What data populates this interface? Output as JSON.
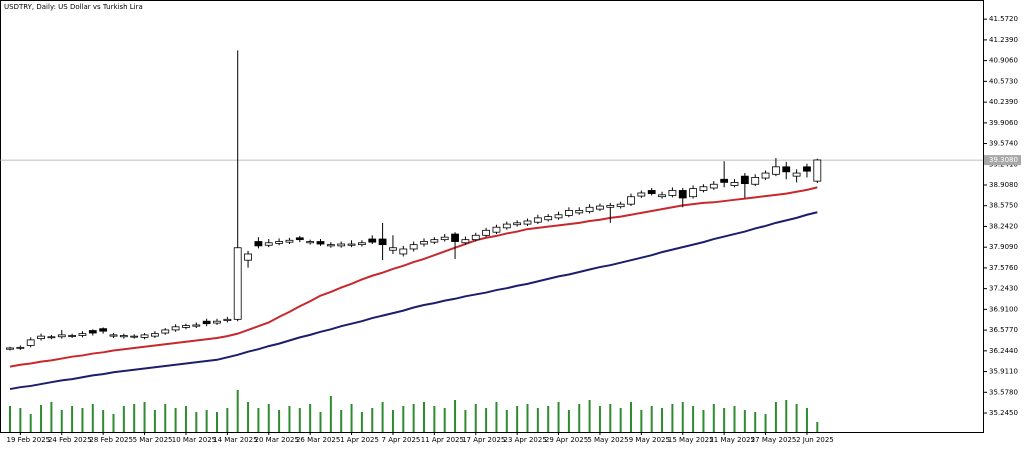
{
  "chart_data": {
    "type": "candlestick",
    "title": "USDTRY, Daily:  US Dollar vs Turkish Lira",
    "categories": [
      null,
      "19 Feb 2025",
      null,
      null,
      null,
      "24 Feb 2025",
      null,
      null,
      null,
      "28 Feb 2025",
      null,
      null,
      null,
      "5 Mar 2025",
      null,
      null,
      null,
      "10 Mar 2025",
      null,
      null,
      null,
      "14 Mar 2025",
      null,
      null,
      null,
      "20 Mar 2025",
      null,
      null,
      null,
      "26 Mar 2025",
      null,
      null,
      null,
      "1 Apr 2025",
      null,
      null,
      null,
      "7 Apr 2025",
      null,
      null,
      null,
      "11 Apr 2025",
      null,
      null,
      null,
      "17 Apr 2025",
      null,
      null,
      null,
      "23 Apr 2025",
      null,
      null,
      null,
      "29 Apr 2025",
      null,
      null,
      null,
      "5 May 2025",
      null,
      null,
      null,
      "9 May 2025",
      null,
      null,
      null,
      "15 May 2025",
      null,
      null,
      null,
      "21 May 2025",
      null,
      null,
      null,
      "27 May 2025",
      null,
      null,
      null,
      "2 Jun 2025",
      null
    ],
    "open": [
      36.27,
      36.29,
      36.33,
      36.44,
      36.46,
      36.47,
      36.48,
      36.49,
      36.57,
      36.6,
      36.48,
      36.47,
      36.47,
      36.46,
      36.48,
      36.53,
      36.58,
      36.62,
      36.64,
      36.72,
      36.69,
      36.73,
      36.75,
      37.7,
      38.0,
      37.94,
      37.97,
      37.99,
      38.06,
      37.98,
      38.0,
      37.93,
      37.93,
      37.94,
      37.95,
      38.04,
      38.04,
      37.86,
      37.8,
      37.88,
      37.96,
      37.99,
      38.03,
      38.12,
      37.98,
      38.03,
      38.1,
      38.15,
      38.22,
      38.27,
      38.28,
      38.31,
      38.35,
      38.38,
      38.42,
      38.46,
      38.48,
      38.52,
      38.55,
      38.56,
      38.6,
      38.73,
      38.82,
      38.72,
      38.74,
      38.82,
      38.72,
      38.82,
      38.86,
      39.0,
      38.9,
      39.05,
      38.92,
      39.02,
      39.08,
      39.2,
      39.05,
      39.2,
      38.97
    ],
    "high": [
      36.31,
      36.33,
      36.46,
      36.52,
      36.5,
      36.58,
      36.52,
      36.56,
      36.59,
      36.62,
      36.53,
      36.52,
      36.51,
      36.53,
      36.56,
      36.61,
      36.67,
      36.68,
      36.7,
      36.76,
      36.76,
      36.79,
      41.07,
      37.85,
      38.07,
      38.04,
      38.05,
      38.06,
      38.09,
      38.03,
      38.04,
      37.99,
      38.0,
      38.02,
      38.02,
      38.1,
      38.3,
      38.1,
      37.93,
      38.0,
      38.05,
      38.07,
      38.12,
      38.15,
      38.08,
      38.14,
      38.22,
      38.27,
      38.32,
      38.34,
      38.37,
      38.43,
      38.44,
      38.48,
      38.55,
      38.55,
      38.6,
      38.61,
      38.62,
      38.64,
      38.77,
      38.82,
      38.86,
      38.8,
      38.87,
      38.86,
      38.9,
      38.92,
      38.97,
      39.29,
      39.0,
      39.1,
      39.08,
      39.14,
      39.34,
      39.28,
      39.16,
      39.25,
      39.33
    ],
    "low": [
      36.25,
      36.26,
      36.3,
      36.41,
      36.43,
      36.44,
      36.45,
      36.46,
      36.49,
      36.52,
      36.45,
      36.44,
      36.44,
      36.43,
      36.45,
      36.5,
      36.55,
      36.59,
      36.61,
      36.64,
      36.66,
      36.7,
      36.72,
      37.58,
      37.89,
      37.91,
      37.94,
      37.96,
      37.99,
      37.95,
      37.93,
      37.9,
      37.9,
      37.91,
      37.92,
      37.96,
      37.7,
      37.8,
      37.76,
      37.84,
      37.92,
      37.96,
      38.0,
      37.72,
      37.95,
      38.0,
      38.07,
      38.12,
      38.19,
      38.24,
      38.25,
      38.28,
      38.32,
      38.35,
      38.39,
      38.43,
      38.45,
      38.49,
      38.3,
      38.53,
      38.57,
      38.7,
      38.74,
      38.69,
      38.71,
      38.55,
      38.69,
      38.79,
      38.83,
      38.87,
      38.87,
      38.7,
      38.89,
      38.99,
      39.05,
      39.0,
      38.95,
      39.03,
      38.94
    ],
    "close": [
      36.29,
      36.3,
      36.42,
      36.48,
      36.47,
      36.5,
      36.49,
      36.52,
      36.53,
      36.56,
      36.5,
      36.49,
      36.48,
      36.5,
      36.52,
      36.58,
      36.63,
      36.65,
      36.66,
      36.68,
      36.72,
      36.75,
      37.9,
      37.8,
      37.93,
      37.98,
      38.0,
      38.02,
      38.03,
      38.0,
      37.96,
      37.95,
      37.96,
      37.96,
      37.98,
      37.99,
      37.95,
      37.9,
      37.88,
      37.95,
      38.0,
      38.03,
      38.07,
      38.0,
      38.03,
      38.1,
      38.18,
      38.23,
      38.28,
      38.3,
      38.33,
      38.38,
      38.4,
      38.43,
      38.5,
      38.5,
      38.55,
      38.57,
      38.58,
      38.6,
      38.72,
      38.78,
      38.77,
      38.75,
      38.82,
      38.7,
      38.85,
      38.88,
      38.92,
      38.95,
      38.95,
      38.93,
      39.03,
      39.1,
      39.2,
      39.12,
      39.1,
      39.13,
      39.31
    ],
    "volume": [
      26,
      24,
      18,
      27,
      30,
      22,
      26,
      24,
      28,
      22,
      18,
      26,
      28,
      30,
      22,
      28,
      24,
      26,
      20,
      22,
      20,
      24,
      42,
      30,
      24,
      28,
      22,
      26,
      24,
      28,
      20,
      36,
      22,
      28,
      20,
      24,
      30,
      22,
      26,
      28,
      30,
      26,
      24,
      32,
      22,
      28,
      24,
      30,
      22,
      26,
      28,
      24,
      26,
      30,
      22,
      28,
      32,
      26,
      28,
      24,
      30,
      22,
      26,
      24,
      28,
      30,
      26,
      22,
      28,
      24,
      26,
      22,
      20,
      18,
      30,
      32,
      28,
      24,
      10
    ],
    "volume_color": "#2e8b2e",
    "bull_color": "#ffffff",
    "bear_color": "#000000",
    "series": [
      {
        "color": "#c8282b",
        "values": [
          35.99,
          36.02,
          36.04,
          36.07,
          36.09,
          36.12,
          36.15,
          36.17,
          36.2,
          36.22,
          36.25,
          36.27,
          36.29,
          36.31,
          36.33,
          36.35,
          36.37,
          36.39,
          36.41,
          36.43,
          36.45,
          36.48,
          36.52,
          36.58,
          36.64,
          36.7,
          36.79,
          36.87,
          36.96,
          37.04,
          37.13,
          37.19,
          37.26,
          37.32,
          37.39,
          37.45,
          37.5,
          37.56,
          37.61,
          37.67,
          37.72,
          37.78,
          37.84,
          37.9,
          37.96,
          38.02,
          38.06,
          38.09,
          38.13,
          38.16,
          38.2,
          38.22,
          38.24,
          38.26,
          38.28,
          38.3,
          38.33,
          38.35,
          38.38,
          38.4,
          38.43,
          38.46,
          38.49,
          38.52,
          38.55,
          38.58,
          38.6,
          38.62,
          38.63,
          38.65,
          38.67,
          38.69,
          38.71,
          38.73,
          38.75,
          38.77,
          38.8,
          38.83,
          38.87
        ]
      },
      {
        "color": "#1b1f6b",
        "values": [
          35.63,
          35.66,
          35.68,
          35.71,
          35.74,
          35.77,
          35.79,
          35.82,
          35.85,
          35.87,
          35.9,
          35.92,
          35.94,
          35.96,
          35.98,
          36.0,
          36.02,
          36.04,
          36.06,
          36.08,
          36.1,
          36.14,
          36.18,
          36.23,
          36.27,
          36.32,
          36.36,
          36.41,
          36.46,
          36.5,
          36.55,
          36.59,
          36.64,
          36.68,
          36.72,
          36.77,
          36.81,
          36.85,
          36.89,
          36.94,
          36.98,
          37.01,
          37.05,
          37.08,
          37.12,
          37.15,
          37.18,
          37.22,
          37.25,
          37.29,
          37.32,
          37.36,
          37.4,
          37.44,
          37.47,
          37.51,
          37.55,
          37.59,
          37.62,
          37.66,
          37.7,
          37.74,
          37.78,
          37.83,
          37.87,
          37.91,
          37.95,
          37.99,
          38.04,
          38.08,
          38.12,
          38.16,
          38.21,
          38.25,
          38.3,
          38.34,
          38.38,
          38.43,
          38.47
        ]
      }
    ],
    "ylim": [
      34.94,
      41.88
    ],
    "yticks": [
      {
        "value": 35.245,
        "label": "35.2450"
      },
      {
        "value": 35.578,
        "label": "35.5780"
      },
      {
        "value": 35.911,
        "label": "35.9110"
      },
      {
        "value": 36.244,
        "label": "36.2440"
      },
      {
        "value": 36.577,
        "label": "36.5770"
      },
      {
        "value": 36.91,
        "label": "36.9100"
      },
      {
        "value": 37.243,
        "label": "37.2430"
      },
      {
        "value": 37.576,
        "label": "37.5760"
      },
      {
        "value": 37.909,
        "label": "37.9090"
      },
      {
        "value": 38.242,
        "label": "38.2420"
      },
      {
        "value": 38.575,
        "label": "38.5750"
      },
      {
        "value": 38.908,
        "label": "38.9080"
      },
      {
        "value": 39.241,
        "label": "39.2410"
      },
      {
        "value": 39.574,
        "label": "39.5740"
      },
      {
        "value": 39.906,
        "label": "39.9060"
      },
      {
        "value": 40.239,
        "label": "40.2390"
      },
      {
        "value": 40.573,
        "label": "40.5730"
      },
      {
        "value": 40.906,
        "label": "40.9060"
      },
      {
        "value": 41.239,
        "label": "41.2390"
      },
      {
        "value": 41.572,
        "label": "41.5720"
      }
    ],
    "last_price": {
      "value": 39.308,
      "label": "39.3080"
    },
    "last_price_color": "#a8a8a8"
  }
}
